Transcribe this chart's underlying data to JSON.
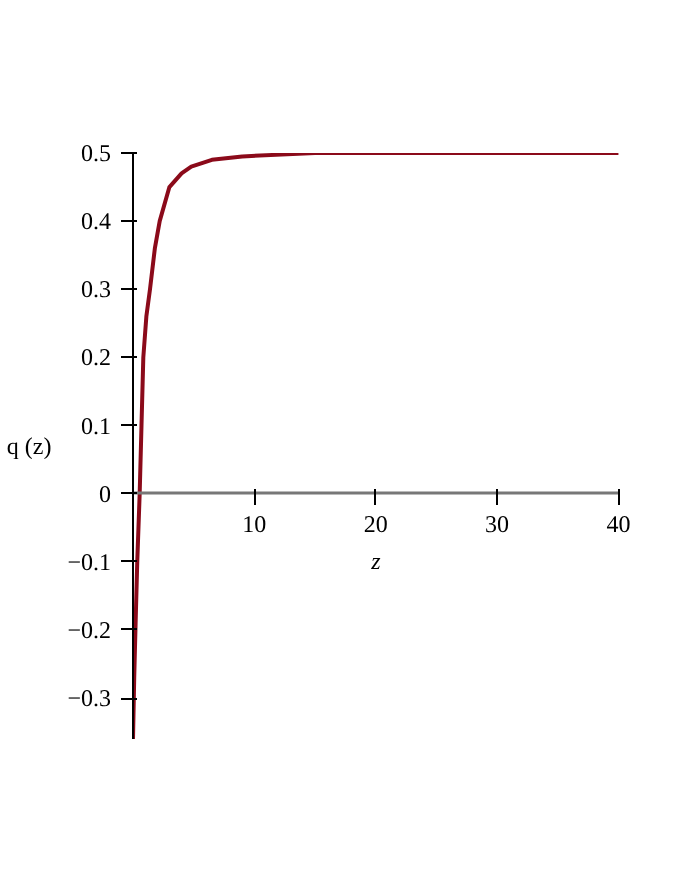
{
  "chart_data": {
    "type": "line",
    "xlabel": "z",
    "ylabel": "q (z)",
    "x": [
      0,
      0.1,
      0.2,
      0.35,
      0.55,
      0.7,
      0.85,
      1.1,
      1.4,
      1.8,
      2.2,
      3,
      4,
      4.8,
      6.5,
      9,
      15,
      20,
      30,
      40
    ],
    "series": [
      {
        "color": "#8b0a1a",
        "values": [
          -0.36,
          -0.27,
          -0.2,
          -0.1,
          0,
          0.1,
          0.2,
          0.26,
          0.3,
          0.36,
          0.4,
          0.45,
          0.47,
          0.48,
          0.49,
          0.495,
          0.5,
          0.5,
          0.5,
          0.5
        ]
      }
    ],
    "xlim": [
      0,
      40
    ],
    "ylim": [
      -0.36,
      0.5
    ],
    "xticks": [
      10,
      20,
      30,
      40
    ],
    "yticks": [
      -0.3,
      -0.2,
      -0.1,
      0,
      0.1,
      0.2,
      0.3,
      0.4,
      0.5
    ],
    "grid": false,
    "marker": "none",
    "line_style": "solid"
  }
}
